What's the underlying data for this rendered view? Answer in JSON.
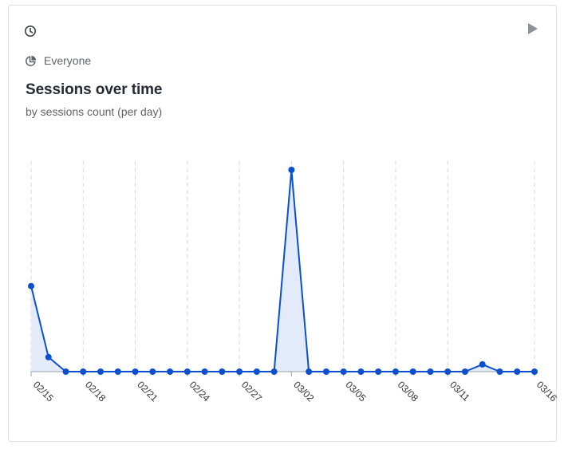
{
  "card": {
    "clock_icon": "clock-icon",
    "play_icon": "play-icon",
    "segment_icon": "pie-chart-icon",
    "segment_label": "Everyone"
  },
  "colors": {
    "line": "#0b4fd1",
    "area": "#e3ebfa",
    "grid": "#d7d9de",
    "axis": "#9aa0a6",
    "icon": "#5f6368",
    "play": "#8f9399"
  },
  "chart_data": {
    "type": "line",
    "title": "Sessions over time",
    "subtitle": "by sessions count (per day)",
    "xlabel": "",
    "ylabel": "",
    "grid": "vertical dashed",
    "legend": "none",
    "x": [
      "02/15",
      "02/16",
      "02/17",
      "02/18",
      "02/19",
      "02/20",
      "02/21",
      "02/22",
      "02/23",
      "02/24",
      "02/25",
      "02/26",
      "02/27",
      "02/28",
      "03/01",
      "03/02",
      "03/03",
      "03/04",
      "03/05",
      "03/06",
      "03/07",
      "03/08",
      "03/09",
      "03/10",
      "03/11",
      "03/12",
      "03/13",
      "03/14",
      "03/15",
      "03/16"
    ],
    "tick_labels": [
      "02/15",
      "02/18",
      "02/21",
      "02/24",
      "02/27",
      "03/02",
      "03/05",
      "03/08",
      "03/11",
      "03/16"
    ],
    "series": [
      {
        "values": [
          10.6,
          1.8,
          0,
          0,
          0,
          0,
          0,
          0,
          0,
          0,
          0,
          0,
          0,
          0,
          0,
          25,
          0,
          0,
          0,
          0,
          0,
          0,
          0,
          0,
          0,
          0,
          0.9,
          0,
          0,
          0
        ]
      }
    ],
    "ylim": [
      0,
      25
    ]
  }
}
